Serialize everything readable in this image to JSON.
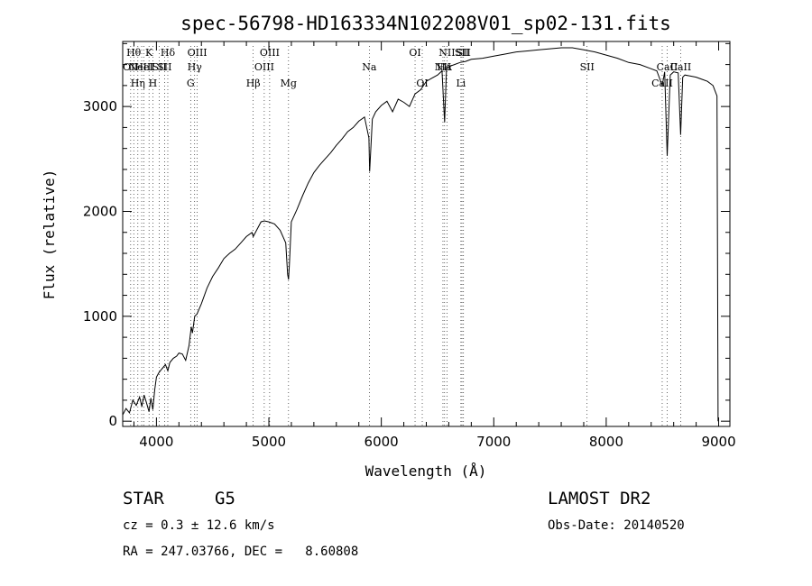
{
  "chart_data": {
    "type": "line",
    "title": "spec-56798-HD163334N102208V01_sp02-131.fits",
    "xlabel": "Wavelength (Å)",
    "ylabel": "Flux (relative)",
    "xlim": [
      3700,
      9100
    ],
    "ylim": [
      -50,
      3620
    ],
    "xticks": [
      4000,
      5000,
      6000,
      7000,
      8000,
      9000
    ],
    "yticks": [
      0,
      1000,
      2000,
      3000
    ],
    "grid": false,
    "series": [
      {
        "x": [
          3700,
          3730,
          3760,
          3790,
          3820,
          3850,
          3870,
          3890,
          3910,
          3934,
          3950,
          3968,
          3985,
          4000,
          4020,
          4050,
          4080,
          4101,
          4120,
          4150,
          4180,
          4200,
          4230,
          4260,
          4290,
          4310,
          4320,
          4340,
          4360,
          4400,
          4450,
          4500,
          4550,
          4600,
          4650,
          4700,
          4750,
          4800,
          4850,
          4861,
          4900,
          4930,
          4960,
          5000,
          5050,
          5100,
          5150,
          5167,
          5175,
          5183,
          5200,
          5250,
          5300,
          5350,
          5400,
          5450,
          5500,
          5550,
          5600,
          5650,
          5700,
          5750,
          5800,
          5850,
          5890,
          5896,
          5920,
          5950,
          6000,
          6050,
          6100,
          6150,
          6200,
          6250,
          6300,
          6350,
          6400,
          6450,
          6500,
          6540,
          6563,
          6580,
          6600,
          6650,
          6700,
          6750,
          6800,
          6900,
          7000,
          7100,
          7200,
          7300,
          7400,
          7500,
          7600,
          7700,
          7800,
          7900,
          8000,
          8100,
          8200,
          8300,
          8400,
          8450,
          8498,
          8520,
          8542,
          8570,
          8600,
          8640,
          8662,
          8680,
          8700,
          8750,
          8800,
          8850,
          8900,
          8950,
          8985,
          8995
        ],
        "values": [
          60,
          120,
          80,
          200,
          150,
          230,
          140,
          250,
          180,
          90,
          220,
          110,
          300,
          420,
          460,
          500,
          540,
          480,
          560,
          600,
          620,
          650,
          640,
          580,
          720,
          900,
          840,
          1000,
          1020,
          1120,
          1270,
          1380,
          1460,
          1550,
          1600,
          1640,
          1700,
          1760,
          1800,
          1760,
          1840,
          1900,
          1910,
          1900,
          1880,
          1820,
          1700,
          1400,
          1350,
          1500,
          1900,
          2020,
          2150,
          2270,
          2370,
          2440,
          2500,
          2560,
          2630,
          2690,
          2760,
          2800,
          2860,
          2900,
          2700,
          2380,
          2880,
          2950,
          3010,
          3050,
          2950,
          3070,
          3040,
          3000,
          3120,
          3160,
          3240,
          3270,
          3300,
          3340,
          2850,
          3360,
          3380,
          3400,
          3420,
          3430,
          3450,
          3460,
          3480,
          3500,
          3520,
          3530,
          3540,
          3550,
          3560,
          3560,
          3540,
          3520,
          3490,
          3460,
          3420,
          3400,
          3360,
          3340,
          3200,
          3330,
          2530,
          3300,
          3330,
          3320,
          2730,
          3280,
          3300,
          3290,
          3280,
          3260,
          3240,
          3200,
          3100,
          0
        ]
      }
    ],
    "lines": [
      {
        "wl": 3771,
        "label": "OII",
        "row": 2
      },
      {
        "wl": 3798,
        "label": "Hθ",
        "row": 1
      },
      {
        "wl": 3835,
        "label": "Hη",
        "row": 3
      },
      {
        "wl": 3869,
        "label": "NeIII",
        "row": 2
      },
      {
        "wl": 3889,
        "label": "HeI",
        "row": 2
      },
      {
        "wl": 3934,
        "label": "K",
        "row": 1
      },
      {
        "wl": 3968,
        "label": "H",
        "row": 3
      },
      {
        "wl": 4026,
        "label": "SII",
        "row": 2
      },
      {
        "wl": 4072,
        "label": "SII",
        "row": 2
      },
      {
        "wl": 4101,
        "label": "Hδ",
        "row": 1
      },
      {
        "wl": 4304,
        "label": "G",
        "row": 3
      },
      {
        "wl": 4340,
        "label": "Hγ",
        "row": 2
      },
      {
        "wl": 4363,
        "label": "OIII",
        "row": 1
      },
      {
        "wl": 4861,
        "label": "Hβ",
        "row": 3
      },
      {
        "wl": 4959,
        "label": "OIII",
        "row": 2
      },
      {
        "wl": 5007,
        "label": "OIII",
        "row": 1
      },
      {
        "wl": 5175,
        "label": "Mg",
        "row": 3
      },
      {
        "wl": 5893,
        "label": "Na",
        "row": 2
      },
      {
        "wl": 6300,
        "label": "OI",
        "row": 1
      },
      {
        "wl": 6364,
        "label": "OI",
        "row": 3
      },
      {
        "wl": 6548,
        "label": "NII",
        "row": 2
      },
      {
        "wl": 6563,
        "label": "Hα",
        "row": 2
      },
      {
        "wl": 6584,
        "label": "NII",
        "row": 1
      },
      {
        "wl": 6708,
        "label": "Li",
        "row": 3
      },
      {
        "wl": 6717,
        "label": "SII",
        "row": 1
      },
      {
        "wl": 6731,
        "label": "SII",
        "row": 1
      },
      {
        "wl": 7830,
        "label": "SII",
        "row": 2
      },
      {
        "wl": 8498,
        "label": "CaII",
        "row": 3
      },
      {
        "wl": 8542,
        "label": "CaII",
        "row": 2
      },
      {
        "wl": 8662,
        "label": "CaII",
        "row": 2
      }
    ]
  },
  "info": {
    "class_label": "STAR",
    "subclass": "G5",
    "survey": "LAMOST DR2",
    "cz_line": "cz = 0.3 ± 12.6 km/s",
    "obs_date": "Obs-Date: 20140520",
    "coords_line": "RA = 247.03766, DEC =   8.60808"
  }
}
